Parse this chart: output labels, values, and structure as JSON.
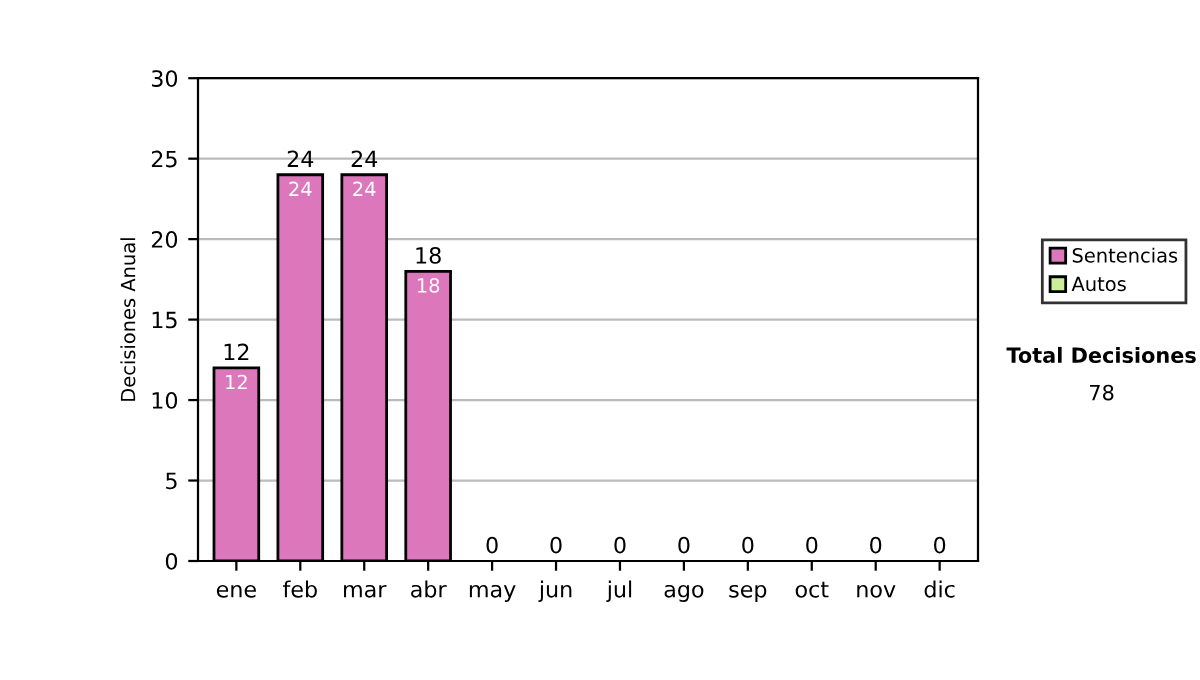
{
  "chart_data": {
    "type": "bar",
    "stacked": true,
    "ylabel": "Decisiones Anual",
    "categories": [
      "ene",
      "feb",
      "mar",
      "abr",
      "may",
      "jun",
      "jul",
      "ago",
      "sep",
      "oct",
      "nov",
      "dic"
    ],
    "series": [
      {
        "name": "Sentencias",
        "color": "#dd77bb",
        "values": [
          12,
          24,
          24,
          18,
          0,
          0,
          0,
          0,
          0,
          0,
          0,
          0
        ],
        "value_labels": [
          "12",
          "24",
          "24",
          "18",
          null,
          null,
          null,
          null,
          null,
          null,
          null,
          null
        ]
      },
      {
        "name": "Autos",
        "color": "#ccee99",
        "values": [
          0,
          0,
          0,
          0,
          0,
          0,
          0,
          0,
          0,
          0,
          0,
          0
        ]
      }
    ],
    "totals": [
      "12",
      "24",
      "24",
      "18",
      "0",
      "0",
      "0",
      "0",
      "0",
      "0",
      "0",
      "0"
    ],
    "ylim": [
      0,
      30
    ],
    "yticks": [
      0,
      5,
      10,
      15,
      20,
      25,
      30
    ],
    "grid": "y",
    "legend": "right",
    "annotations": [
      "Total Decisiones",
      "78"
    ]
  }
}
